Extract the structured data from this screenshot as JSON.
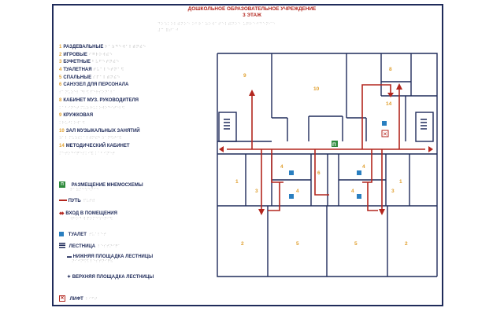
{
  "header": {
    "title_line1": "ДОШКОЛЬНОЕ ОБРАЗОВАТЕЛЬНОЕ УЧРЕЖДЕНИЕ",
    "title_line2": "3 ЭТАЖ"
  },
  "legend": {
    "items": [
      {
        "num": "1",
        "label": "РАЗДЕВАЛЬНЫЕ"
      },
      {
        "num": "2",
        "label": "ИГРОВЫЕ"
      },
      {
        "num": "3",
        "label": "БУФЕТНЫЕ"
      },
      {
        "num": "4",
        "label": "ТУАЛЕТНАЯ"
      },
      {
        "num": "5",
        "label": "СПАЛЬНЫЕ"
      },
      {
        "num": "6",
        "label": "САНУЗЕЛ ДЛЯ ПЕРСОНАЛА"
      },
      {
        "num": "8",
        "label": "КАБИНЕТ МУЗ. РУКОВОДИТЕЛЯ"
      },
      {
        "num": "9",
        "label": "КРУЖКОВАЯ"
      },
      {
        "num": "10",
        "label": "ЗАЛ МУЗЫКАЛЬНЫХ ЗАНЯТИЙ"
      },
      {
        "num": "14",
        "label": "МЕТОДИЧЕСКИЙ КАБИНЕТ"
      }
    ],
    "symbols": {
      "mnemo": "РАЗМЕЩЕНИЕ МНЕМОСХЕМЫ",
      "path": "ПУТЬ",
      "entrance": "ВХОД В ПОМЕЩЕНИЯ",
      "toilet": "ТУАЛЕТ",
      "stairs": "ЛЕСТНИЦА",
      "lower_landing": "НИЖНЯЯ ПЛОЩАДКА ЛЕСТНИЦЫ",
      "upper_landing": "ВЕРХНЯЯ ПЛОЩАДКА ЛЕСТНИЦЫ",
      "lift": "ЛИФТ"
    }
  },
  "plan": {
    "rooms": [
      "9",
      "10",
      "8",
      "14",
      "1",
      "4",
      "6",
      "4",
      "1",
      "3",
      "4",
      "3",
      "4",
      "2",
      "5",
      "5",
      "2"
    ],
    "mnemo_letter": "П",
    "colors": {
      "wall": "#1f2b5a",
      "path": "#b3261e",
      "room_number": "#e0a030",
      "toilet": "#2a7fc0",
      "mnemo": "#2e8b3c"
    }
  }
}
